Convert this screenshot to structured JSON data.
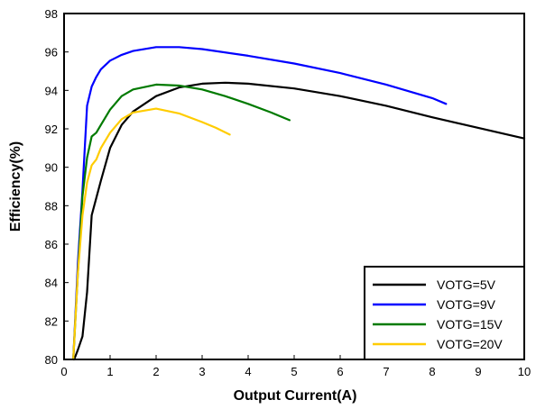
{
  "chart_data": {
    "type": "line",
    "title": "",
    "xlabel": "Output Current(A)",
    "ylabel": "Efficiency(%)",
    "xlim": [
      0,
      10
    ],
    "ylim": [
      80,
      98
    ],
    "xticks": [
      0,
      1,
      2,
      3,
      4,
      5,
      6,
      7,
      8,
      9,
      10
    ],
    "yticks": [
      80,
      82,
      84,
      86,
      88,
      90,
      92,
      94,
      96,
      98
    ],
    "grid": false,
    "legend_position": "bottom-right",
    "series": [
      {
        "name": "VOTG=5V",
        "color": "#000000",
        "x": [
          0.22,
          0.3,
          0.4,
          0.5,
          0.6,
          0.7,
          0.8,
          1.0,
          1.25,
          1.5,
          2.0,
          2.5,
          3.0,
          3.5,
          4.0,
          5.0,
          6.0,
          7.0,
          8.0,
          9.0,
          10.0
        ],
        "y": [
          80.0,
          80.5,
          81.2,
          83.5,
          87.5,
          88.4,
          89.3,
          91.0,
          92.2,
          92.9,
          93.7,
          94.15,
          94.35,
          94.4,
          94.35,
          94.1,
          93.7,
          93.2,
          92.6,
          92.05,
          91.5
        ]
      },
      {
        "name": "VOTG=9V",
        "color": "#0000ff",
        "x": [
          0.2,
          0.3,
          0.4,
          0.5,
          0.6,
          0.7,
          0.8,
          1.0,
          1.25,
          1.5,
          2.0,
          2.5,
          3.0,
          4.0,
          5.0,
          6.0,
          7.0,
          8.0,
          8.3
        ],
        "y": [
          80.0,
          85.0,
          88.8,
          93.2,
          94.2,
          94.7,
          95.1,
          95.55,
          95.85,
          96.05,
          96.25,
          96.25,
          96.15,
          95.8,
          95.4,
          94.9,
          94.3,
          93.6,
          93.3
        ]
      },
      {
        "name": "VOTG=15V",
        "color": "#007a00",
        "x": [
          0.2,
          0.3,
          0.4,
          0.5,
          0.6,
          0.7,
          0.8,
          1.0,
          1.25,
          1.5,
          2.0,
          2.5,
          3.0,
          3.5,
          4.0,
          4.5,
          4.9
        ],
        "y": [
          80.0,
          84.5,
          88.5,
          90.5,
          91.6,
          91.8,
          92.2,
          93.0,
          93.7,
          94.05,
          94.3,
          94.25,
          94.05,
          93.7,
          93.3,
          92.85,
          92.45
        ]
      },
      {
        "name": "VOTG=20V",
        "color": "#ffcc00",
        "x": [
          0.2,
          0.3,
          0.4,
          0.5,
          0.6,
          0.7,
          0.8,
          1.0,
          1.25,
          1.5,
          2.0,
          2.5,
          3.0,
          3.3,
          3.6
        ],
        "y": [
          80.0,
          84.5,
          87.5,
          89.2,
          90.1,
          90.4,
          91.0,
          91.8,
          92.5,
          92.85,
          93.05,
          92.8,
          92.35,
          92.05,
          91.7
        ]
      }
    ]
  }
}
